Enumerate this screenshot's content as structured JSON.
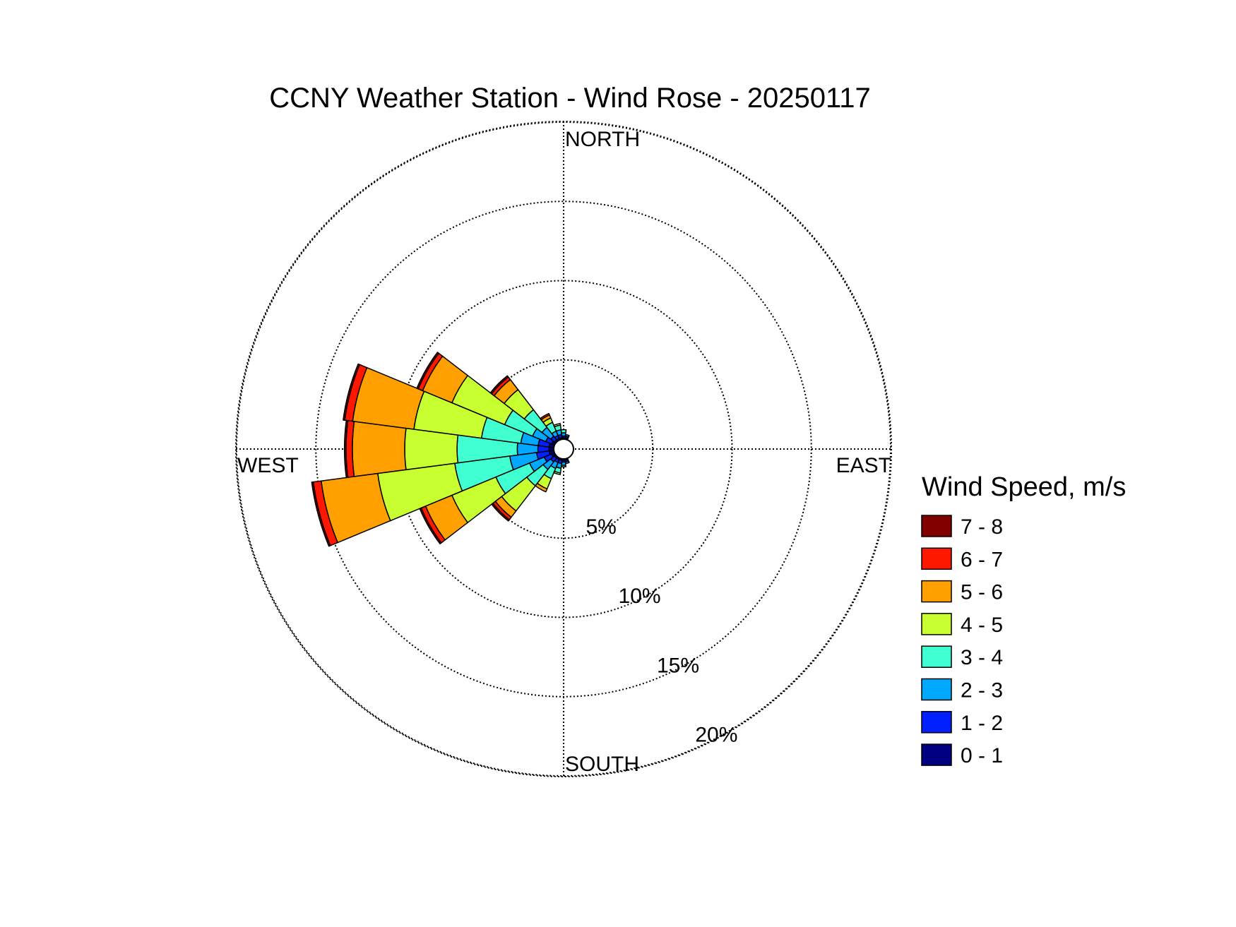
{
  "chart_data": {
    "type": "windrose",
    "title": "CCNY Weather Station - Wind Rose - 20250117",
    "directions": [
      "NORTH",
      "EAST",
      "SOUTH",
      "WEST"
    ],
    "rings": [
      5,
      10,
      15,
      20
    ],
    "ring_labels": [
      "5%",
      "10%",
      "15%",
      "20%"
    ],
    "legend_title": "Wind Speed, m/s",
    "speed_bins": [
      "0 - 1",
      "1 - 2",
      "2 - 3",
      "3 - 4",
      "4 - 5",
      "5 - 6",
      "6 - 7",
      "7 - 8"
    ],
    "colors": [
      "#000080",
      "#0020ff",
      "#00a8ff",
      "#40ffd0",
      "#c8ff30",
      "#ffa000",
      "#ff1800",
      "#800000"
    ],
    "sectors": [
      {
        "direction_deg": 285,
        "cumulative": [
          0.3,
          1.0,
          2.1,
          4.6,
          8.9,
          12.8,
          13.3,
          13.4
        ]
      },
      {
        "direction_deg": 270,
        "cumulative": [
          0.3,
          1.0,
          2.3,
          6.1,
          9.4,
          12.7,
          13.1,
          13.2
        ]
      },
      {
        "direction_deg": 255,
        "cumulative": [
          0.3,
          1.1,
          2.8,
          6.3,
          11.2,
          14.8,
          15.3,
          15.4
        ]
      },
      {
        "direction_deg": 240,
        "cumulative": [
          0.2,
          0.7,
          1.7,
          4.0,
          7.0,
          8.8,
          9.1,
          9.2
        ]
      },
      {
        "direction_deg": 300,
        "cumulative": [
          0.2,
          0.6,
          1.5,
          3.4,
          7.0,
          9.0,
          9.3,
          9.4
        ]
      },
      {
        "direction_deg": 315,
        "cumulative": [
          0.1,
          0.4,
          1.1,
          2.5,
          4.1,
          4.9,
          5.1,
          5.2
        ]
      },
      {
        "direction_deg": 225,
        "cumulative": [
          0.1,
          0.4,
          1.0,
          2.3,
          4.3,
          4.8,
          5.0,
          5.1
        ]
      },
      {
        "direction_deg": 330,
        "cumulative": [
          0.1,
          0.3,
          0.6,
          1.2,
          1.5,
          1.7,
          1.8
        ]
      },
      {
        "direction_deg": 345,
        "cumulative": [
          0.1,
          0.3,
          0.6,
          0.9,
          1.0
        ]
      },
      {
        "direction_deg": 0,
        "cumulative": [
          0.1,
          0.2,
          0.4,
          0.6
        ]
      },
      {
        "direction_deg": 15,
        "cumulative": [
          0.1,
          0.2,
          0.3
        ]
      },
      {
        "direction_deg": 165,
        "cumulative": [
          0.1,
          0.2,
          0.3
        ]
      },
      {
        "direction_deg": 180,
        "cumulative": [
          0.1,
          0.2,
          0.4,
          0.5
        ]
      },
      {
        "direction_deg": 195,
        "cumulative": [
          0.1,
          0.3,
          0.6,
          0.9,
          1.0
        ]
      },
      {
        "direction_deg": 210,
        "cumulative": [
          0.1,
          0.3,
          0.7,
          1.4,
          2.1,
          2.3
        ]
      }
    ],
    "grid": true,
    "legend_position": "right"
  }
}
